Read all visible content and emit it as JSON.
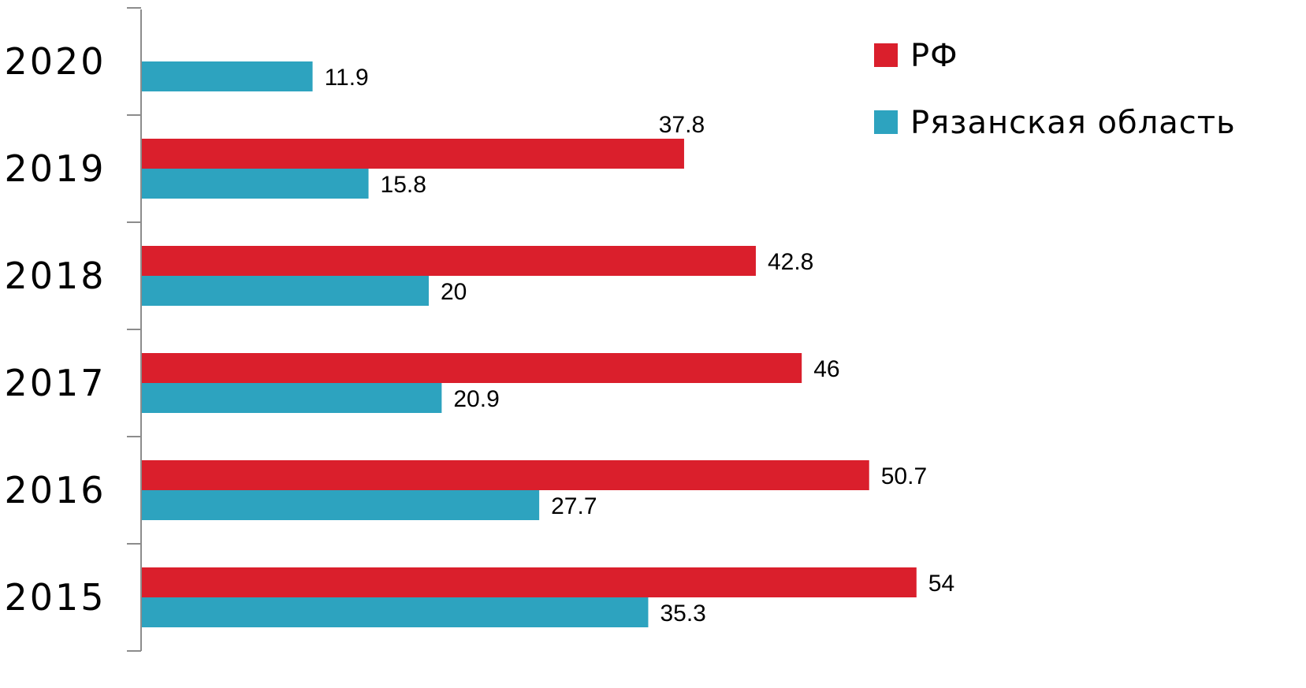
{
  "chart_data": {
    "type": "bar",
    "orientation": "horizontal",
    "categories": [
      "2015",
      "2016",
      "2017",
      "2018",
      "2019",
      "2020"
    ],
    "series": [
      {
        "name": "РФ",
        "color": "#DA1F2C",
        "values": [
          54,
          50.7,
          46,
          42.8,
          37.8,
          null
        ]
      },
      {
        "name": "Рязанская область",
        "color": "#2DA3BF",
        "values": [
          35.3,
          27.7,
          20.9,
          20,
          15.8,
          11.9
        ]
      }
    ],
    "data_labels": true,
    "legend_position": "top-right",
    "grid": false,
    "xlim": [
      0,
      60
    ]
  }
}
